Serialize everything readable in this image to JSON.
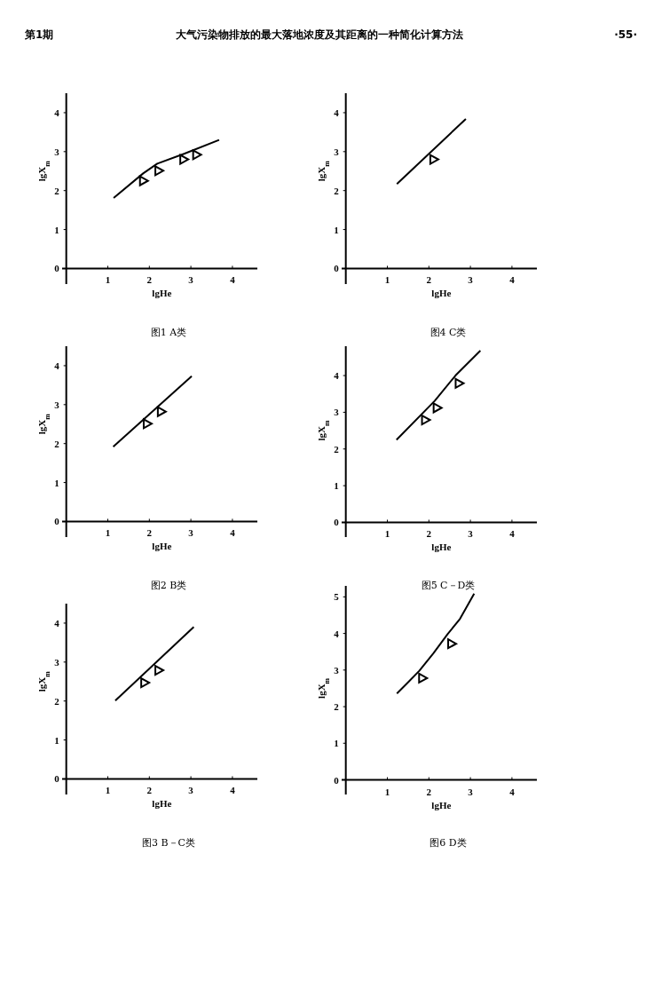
{
  "chart_data": [
    {
      "type": "other",
      "annotations": [
        "第1期",
        "大气污染物排放的最大落地浓度及其距离的一种简化计算方法",
        "·55·"
      ]
    },
    {
      "type": "line",
      "title": "图1 A类",
      "xlabel": "lgHe",
      "ylabel": "lgX$_{m}$",
      "xlim": [
        -0.1,
        4.6
      ],
      "ylim": [
        -0.4,
        4.5
      ],
      "xticks": [
        1,
        2,
        3,
        4
      ],
      "yticks": [
        0,
        1,
        2,
        3,
        4
      ],
      "series": [
        {
          "type": "line",
          "x": [
            1.14,
            1.85,
            2.19,
            2.85,
            3.68
          ],
          "values": [
            1.81,
            2.44,
            2.69,
            2.95,
            3.3
          ],
          "color": "#000000"
        },
        {
          "type": "scatter",
          "x": [
            1.86,
            2.23,
            2.83,
            3.14
          ],
          "values": [
            2.25,
            2.51,
            2.8,
            2.92
          ],
          "color": "#000000",
          "marker": "triangle"
        }
      ]
    },
    {
      "type": "line",
      "title": "图4 C类",
      "xlabel": "lgHe",
      "ylabel": "lgX$_{m}$",
      "xlim": [
        -0.1,
        4.6
      ],
      "ylim": [
        -0.4,
        4.5
      ],
      "xticks": [
        1,
        2,
        3,
        4
      ],
      "yticks": [
        0,
        1,
        2,
        3,
        4
      ],
      "series": [
        {
          "type": "line",
          "x": [
            1.23,
            2.89
          ],
          "values": [
            2.17,
            3.84
          ],
          "color": "#000000"
        },
        {
          "type": "scatter",
          "x": [
            2.12
          ],
          "values": [
            2.8
          ],
          "color": "#000000",
          "marker": "triangle"
        }
      ]
    },
    {
      "type": "line",
      "title": "图2 B类",
      "xlabel": "lgHe",
      "ylabel": "lgX$_{m}$",
      "xlim": [
        -0.1,
        4.6
      ],
      "ylim": [
        -0.4,
        4.5
      ],
      "xticks": [
        1,
        2,
        3,
        4
      ],
      "yticks": [
        0,
        1,
        2,
        3,
        4
      ],
      "series": [
        {
          "type": "line",
          "x": [
            1.13,
            3.02
          ],
          "values": [
            1.92,
            3.73
          ],
          "color": "#000000"
        },
        {
          "type": "scatter",
          "x": [
            1.95,
            2.29
          ],
          "values": [
            2.51,
            2.82
          ],
          "color": "#000000",
          "marker": "triangle"
        }
      ]
    },
    {
      "type": "line",
      "title": "图5 C－D类",
      "xlabel": "lgHe",
      "ylabel": "lgX$_{m}$",
      "xlim": [
        -0.1,
        4.6
      ],
      "ylim": [
        -0.4,
        4.8
      ],
      "xticks": [
        1,
        2,
        3,
        4
      ],
      "yticks": [
        0,
        1,
        2,
        3,
        4
      ],
      "series": [
        {
          "type": "line",
          "x": [
            1.22,
            2.14,
            2.64,
            3.24
          ],
          "values": [
            2.25,
            3.31,
            4.0,
            4.68
          ],
          "color": "#000000"
        },
        {
          "type": "scatter",
          "x": [
            1.92,
            2.2,
            2.73
          ],
          "values": [
            2.79,
            3.12,
            3.79
          ],
          "color": "#000000",
          "marker": "triangle"
        }
      ]
    },
    {
      "type": "line",
      "title": "图3 B－C类",
      "xlabel": "lgHe",
      "ylabel": "lgX$_{m}$",
      "xlim": [
        -0.1,
        4.6
      ],
      "ylim": [
        -0.4,
        4.5
      ],
      "xticks": [
        1,
        2,
        3,
        4
      ],
      "yticks": [
        0,
        1,
        2,
        3,
        4
      ],
      "series": [
        {
          "type": "line",
          "x": [
            1.18,
            3.07
          ],
          "values": [
            2.01,
            3.9
          ],
          "color": "#000000"
        },
        {
          "type": "scatter",
          "x": [
            1.89,
            2.23
          ],
          "values": [
            2.47,
            2.79
          ],
          "color": "#000000",
          "marker": "triangle"
        }
      ]
    },
    {
      "type": "line",
      "title": "图6 D类",
      "xlabel": "lgHe",
      "ylabel": "lgX$_{m}$",
      "xlim": [
        -0.1,
        4.6
      ],
      "ylim": [
        -0.4,
        5.3
      ],
      "xticks": [
        1,
        2,
        3,
        4
      ],
      "yticks": [
        0,
        1,
        2,
        3,
        4,
        5
      ],
      "series": [
        {
          "type": "line",
          "x": [
            1.23,
            1.47,
            1.77,
            2.11,
            2.45,
            2.75,
            3.09
          ],
          "values": [
            2.36,
            2.63,
            2.98,
            3.46,
            3.98,
            4.4,
            5.09
          ],
          "color": "#000000"
        },
        {
          "type": "scatter",
          "x": [
            1.85,
            2.55
          ],
          "values": [
            2.78,
            3.72
          ],
          "color": "#000000",
          "marker": "triangle"
        }
      ]
    }
  ]
}
